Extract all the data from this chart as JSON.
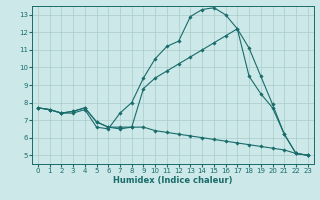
{
  "title": "",
  "xlabel": "Humidex (Indice chaleur)",
  "bg_color": "#cce8e8",
  "grid_color": "#aacccc",
  "line_color": "#1a6b6b",
  "xlim": [
    -0.5,
    23.5
  ],
  "ylim": [
    4.5,
    13.5
  ],
  "xticks": [
    0,
    1,
    2,
    3,
    4,
    5,
    6,
    7,
    8,
    9,
    10,
    11,
    12,
    13,
    14,
    15,
    16,
    17,
    18,
    19,
    20,
    21,
    22,
    23
  ],
  "yticks": [
    5,
    6,
    7,
    8,
    9,
    10,
    11,
    12,
    13
  ],
  "curve1_x": [
    0,
    1,
    2,
    3,
    4,
    5,
    6,
    7,
    8,
    9,
    10,
    11,
    12,
    13,
    14,
    15,
    16,
    17,
    18,
    19,
    20,
    21,
    22,
    23
  ],
  "curve1_y": [
    7.7,
    7.6,
    7.4,
    7.4,
    7.6,
    6.6,
    6.5,
    7.4,
    8.0,
    9.4,
    10.5,
    11.2,
    11.5,
    12.9,
    13.3,
    13.4,
    13.0,
    12.2,
    11.1,
    9.5,
    7.9,
    6.2,
    5.1,
    5.0
  ],
  "curve2_x": [
    0,
    1,
    2,
    3,
    4,
    5,
    6,
    7,
    8,
    9,
    10,
    11,
    12,
    13,
    14,
    15,
    16,
    17,
    18,
    19,
    20,
    21,
    22,
    23
  ],
  "curve2_y": [
    7.7,
    7.6,
    7.4,
    7.5,
    7.7,
    6.9,
    6.6,
    6.6,
    6.6,
    8.8,
    9.4,
    9.8,
    10.2,
    10.6,
    11.0,
    11.4,
    11.8,
    12.2,
    9.5,
    8.5,
    7.7,
    6.2,
    5.1,
    5.0
  ],
  "curve3_x": [
    0,
    1,
    2,
    3,
    4,
    5,
    6,
    7,
    8,
    9,
    10,
    11,
    12,
    13,
    14,
    15,
    16,
    17,
    18,
    19,
    20,
    21,
    22,
    23
  ],
  "curve3_y": [
    7.7,
    7.6,
    7.4,
    7.5,
    7.7,
    6.9,
    6.6,
    6.5,
    6.6,
    6.6,
    6.4,
    6.3,
    6.2,
    6.1,
    6.0,
    5.9,
    5.8,
    5.7,
    5.6,
    5.5,
    5.4,
    5.3,
    5.1,
    5.0
  ],
  "marker_size": 1.8,
  "linewidth": 0.8,
  "tick_fontsize": 5.0,
  "xlabel_fontsize": 6.0
}
